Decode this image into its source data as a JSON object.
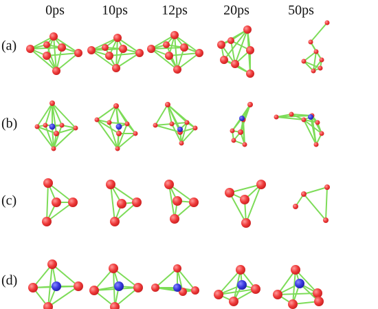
{
  "columns": [
    "0ps",
    "10ps",
    "12ps",
    "20ps",
    "50ps"
  ],
  "rows": [
    "(a)",
    "(b)",
    "(c)",
    "(d)"
  ],
  "colors": {
    "atom_red": "#ef3b3b",
    "atom_red_dark": "#c81e1e",
    "atom_blue": "#3a3ae0",
    "atom_blue_dark": "#1e1ea6",
    "bond": "#7ddc58"
  }
}
